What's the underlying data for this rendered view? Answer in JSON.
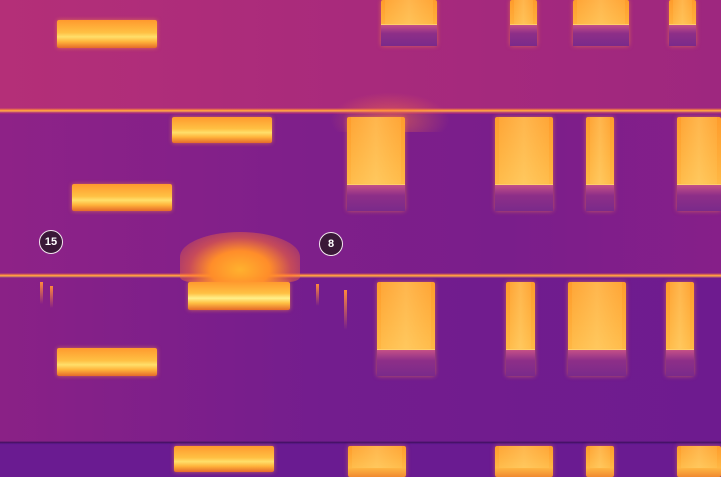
{
  "image": {
    "palette": [
      "#b02c78",
      "#7f1f8a",
      "#641a93",
      "#ff8a3a",
      "#ffc043",
      "#ffdf6a"
    ]
  },
  "markers": [
    {
      "label": "15"
    },
    {
      "label": "8"
    }
  ]
}
